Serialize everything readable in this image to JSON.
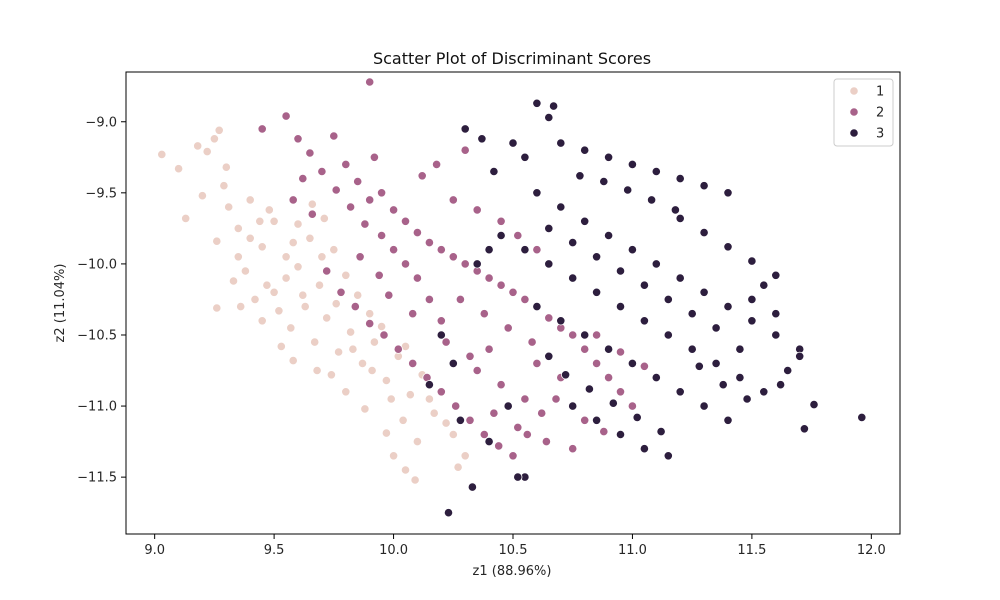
{
  "chart_data": {
    "type": "scatter",
    "title": "Scatter Plot of Discriminant Scores",
    "xlabel": "z1 (88.96%)",
    "ylabel": "z2 (11.04%)",
    "xlim": [
      8.88,
      12.12
    ],
    "ylim": [
      -11.9,
      -8.65
    ],
    "xticks": [
      9.0,
      9.5,
      10.0,
      10.5,
      11.0,
      11.5,
      12.0
    ],
    "xtick_labels": [
      "9.0",
      "9.5",
      "10.0",
      "10.5",
      "11.0",
      "11.5",
      "12.0"
    ],
    "yticks": [
      -9.0,
      -9.5,
      -10.0,
      -10.5,
      -11.0,
      -11.5
    ],
    "ytick_labels": [
      "−9.0",
      "−9.5",
      "−10.0",
      "−10.5",
      "−11.0",
      "−11.5"
    ],
    "grid": false,
    "legend_position": "top-right",
    "series": [
      {
        "name": "1",
        "color": "#ebcfc6",
        "points": [
          [
            9.03,
            -9.23
          ],
          [
            9.1,
            -9.33
          ],
          [
            9.13,
            -9.68
          ],
          [
            9.18,
            -9.17
          ],
          [
            9.22,
            -9.21
          ],
          [
            9.25,
            -9.12
          ],
          [
            9.27,
            -9.06
          ],
          [
            9.3,
            -9.32
          ],
          [
            9.2,
            -9.52
          ],
          [
            9.26,
            -9.84
          ],
          [
            9.31,
            -9.6
          ],
          [
            9.35,
            -9.75
          ],
          [
            9.4,
            -9.55
          ],
          [
            9.45,
            -9.88
          ],
          [
            9.5,
            -9.7
          ],
          [
            9.55,
            -9.95
          ],
          [
            9.6,
            -10.02
          ],
          [
            9.65,
            -9.82
          ],
          [
            9.7,
            -9.95
          ],
          [
            9.38,
            -10.05
          ],
          [
            9.42,
            -10.25
          ],
          [
            9.47,
            -10.15
          ],
          [
            9.52,
            -10.33
          ],
          [
            9.57,
            -10.45
          ],
          [
            9.62,
            -10.22
          ],
          [
            9.67,
            -10.55
          ],
          [
            9.72,
            -10.38
          ],
          [
            9.77,
            -10.62
          ],
          [
            9.82,
            -10.48
          ],
          [
            9.87,
            -10.7
          ],
          [
            9.92,
            -10.55
          ],
          [
            9.97,
            -10.82
          ],
          [
            10.02,
            -10.65
          ],
          [
            10.07,
            -10.92
          ],
          [
            10.12,
            -10.78
          ],
          [
            10.17,
            -11.05
          ],
          [
            10.22,
            -11.12
          ],
          [
            10.0,
            -11.35
          ],
          [
            10.05,
            -11.45
          ],
          [
            10.09,
            -11.52
          ],
          [
            9.97,
            -11.19
          ],
          [
            9.88,
            -11.02
          ],
          [
            9.8,
            -10.9
          ],
          [
            9.74,
            -10.78
          ],
          [
            9.68,
            -10.75
          ],
          [
            9.58,
            -10.68
          ],
          [
            9.53,
            -10.58
          ],
          [
            9.45,
            -10.4
          ],
          [
            9.36,
            -10.3
          ],
          [
            9.26,
            -10.31
          ],
          [
            9.6,
            -9.72
          ],
          [
            9.66,
            -9.58
          ],
          [
            9.71,
            -9.68
          ],
          [
            9.75,
            -9.9
          ],
          [
            9.8,
            -10.08
          ],
          [
            9.85,
            -10.22
          ],
          [
            9.9,
            -10.35
          ],
          [
            9.95,
            -10.44
          ],
          [
            10.05,
            -10.58
          ],
          [
            10.15,
            -10.95
          ],
          [
            10.25,
            -11.2
          ],
          [
            10.3,
            -11.35
          ],
          [
            10.27,
            -11.43
          ],
          [
            9.48,
            -9.62
          ],
          [
            9.44,
            -9.7
          ],
          [
            9.35,
            -9.95
          ],
          [
            9.33,
            -10.12
          ],
          [
            9.55,
            -10.1
          ],
          [
            9.63,
            -10.3
          ],
          [
            9.69,
            -10.15
          ],
          [
            9.76,
            -10.28
          ],
          [
            9.83,
            -10.6
          ],
          [
            9.91,
            -10.75
          ],
          [
            9.99,
            -10.95
          ],
          [
            10.04,
            -11.1
          ],
          [
            10.1,
            -11.25
          ],
          [
            9.58,
            -9.85
          ],
          [
            9.5,
            -10.2
          ],
          [
            9.4,
            -9.82
          ],
          [
            9.29,
            -9.45
          ]
        ]
      },
      {
        "name": "2",
        "color": "#a8628a",
        "points": [
          [
            9.9,
            -8.72
          ],
          [
            9.55,
            -8.96
          ],
          [
            9.45,
            -9.05
          ],
          [
            9.6,
            -9.12
          ],
          [
            9.65,
            -9.22
          ],
          [
            9.7,
            -9.35
          ],
          [
            9.75,
            -9.1
          ],
          [
            9.8,
            -9.3
          ],
          [
            9.85,
            -9.42
          ],
          [
            9.9,
            -9.55
          ],
          [
            9.95,
            -9.5
          ],
          [
            10.0,
            -9.62
          ],
          [
            10.05,
            -9.7
          ],
          [
            10.1,
            -9.78
          ],
          [
            10.15,
            -9.85
          ],
          [
            10.2,
            -9.9
          ],
          [
            10.25,
            -9.95
          ],
          [
            10.3,
            -10.0
          ],
          [
            10.35,
            -10.05
          ],
          [
            10.4,
            -10.1
          ],
          [
            10.45,
            -10.15
          ],
          [
            10.5,
            -10.2
          ],
          [
            10.55,
            -10.25
          ],
          [
            10.6,
            -10.3
          ],
          [
            10.65,
            -10.38
          ],
          [
            10.7,
            -10.45
          ],
          [
            10.75,
            -10.5
          ],
          [
            10.8,
            -10.6
          ],
          [
            10.85,
            -10.7
          ],
          [
            10.9,
            -10.8
          ],
          [
            10.95,
            -10.9
          ],
          [
            11.0,
            -11.0
          ],
          [
            9.72,
            -10.05
          ],
          [
            9.78,
            -10.2
          ],
          [
            9.84,
            -10.3
          ],
          [
            9.9,
            -10.42
          ],
          [
            9.96,
            -10.5
          ],
          [
            10.02,
            -10.6
          ],
          [
            10.08,
            -10.7
          ],
          [
            10.14,
            -10.8
          ],
          [
            10.2,
            -10.9
          ],
          [
            10.26,
            -11.0
          ],
          [
            10.32,
            -11.1
          ],
          [
            10.38,
            -11.2
          ],
          [
            10.44,
            -11.28
          ],
          [
            10.5,
            -11.35
          ],
          [
            10.56,
            -11.2
          ],
          [
            10.62,
            -11.05
          ],
          [
            10.68,
            -10.95
          ],
          [
            10.4,
            -10.6
          ],
          [
            10.35,
            -10.75
          ],
          [
            10.45,
            -10.85
          ],
          [
            10.55,
            -10.95
          ],
          [
            10.6,
            -10.7
          ],
          [
            10.7,
            -10.8
          ],
          [
            10.8,
            -11.1
          ],
          [
            10.2,
            -10.4
          ],
          [
            10.15,
            -10.25
          ],
          [
            10.1,
            -10.1
          ],
          [
            10.05,
            -10.0
          ],
          [
            10.0,
            -9.9
          ],
          [
            9.95,
            -9.8
          ],
          [
            9.88,
            -9.72
          ],
          [
            9.82,
            -9.6
          ],
          [
            9.76,
            -9.48
          ],
          [
            10.25,
            -9.55
          ],
          [
            10.35,
            -9.62
          ],
          [
            10.45,
            -9.7
          ],
          [
            10.52,
            -9.8
          ],
          [
            10.6,
            -9.9
          ],
          [
            10.12,
            -9.38
          ],
          [
            10.18,
            -9.3
          ],
          [
            9.92,
            -9.25
          ],
          [
            10.3,
            -9.2
          ],
          [
            9.62,
            -9.4
          ],
          [
            9.58,
            -9.55
          ],
          [
            9.66,
            -9.65
          ],
          [
            10.28,
            -10.25
          ],
          [
            10.38,
            -10.35
          ],
          [
            10.48,
            -10.45
          ],
          [
            10.58,
            -10.55
          ],
          [
            10.42,
            -11.05
          ],
          [
            10.52,
            -11.15
          ],
          [
            10.64,
            -11.25
          ],
          [
            10.88,
            -11.18
          ],
          [
            10.75,
            -11.3
          ],
          [
            10.85,
            -10.5
          ],
          [
            10.95,
            -10.62
          ],
          [
            11.05,
            -10.72
          ],
          [
            10.22,
            -10.55
          ],
          [
            10.32,
            -10.65
          ],
          [
            9.98,
            -10.22
          ],
          [
            10.08,
            -10.35
          ],
          [
            9.86,
            -9.95
          ],
          [
            9.94,
            -10.08
          ]
        ]
      },
      {
        "name": "3",
        "color": "#2d1e3e",
        "points": [
          [
            10.6,
            -8.87
          ],
          [
            10.65,
            -8.97
          ],
          [
            10.67,
            -8.89
          ],
          [
            10.5,
            -9.15
          ],
          [
            10.55,
            -9.25
          ],
          [
            10.7,
            -9.15
          ],
          [
            10.8,
            -9.2
          ],
          [
            10.9,
            -9.25
          ],
          [
            11.0,
            -9.3
          ],
          [
            11.1,
            -9.35
          ],
          [
            11.2,
            -9.4
          ],
          [
            11.3,
            -9.45
          ],
          [
            11.4,
            -9.5
          ],
          [
            10.6,
            -9.5
          ],
          [
            10.7,
            -9.6
          ],
          [
            10.8,
            -9.7
          ],
          [
            10.9,
            -9.8
          ],
          [
            11.0,
            -9.9
          ],
          [
            11.1,
            -10.0
          ],
          [
            11.2,
            -10.1
          ],
          [
            11.3,
            -10.2
          ],
          [
            11.4,
            -10.3
          ],
          [
            11.5,
            -10.4
          ],
          [
            11.6,
            -10.5
          ],
          [
            11.7,
            -10.6
          ],
          [
            10.55,
            -9.9
          ],
          [
            10.65,
            -10.0
          ],
          [
            10.75,
            -10.1
          ],
          [
            10.85,
            -10.2
          ],
          [
            10.95,
            -10.3
          ],
          [
            11.05,
            -10.4
          ],
          [
            11.15,
            -10.5
          ],
          [
            11.25,
            -10.6
          ],
          [
            11.35,
            -10.7
          ],
          [
            11.45,
            -10.8
          ],
          [
            11.55,
            -10.9
          ],
          [
            10.6,
            -10.3
          ],
          [
            10.7,
            -10.4
          ],
          [
            10.8,
            -10.5
          ],
          [
            10.9,
            -10.6
          ],
          [
            11.0,
            -10.7
          ],
          [
            11.1,
            -10.8
          ],
          [
            11.2,
            -10.9
          ],
          [
            11.3,
            -11.0
          ],
          [
            11.4,
            -11.1
          ],
          [
            10.75,
            -11.0
          ],
          [
            10.85,
            -11.1
          ],
          [
            10.95,
            -11.2
          ],
          [
            11.05,
            -11.3
          ],
          [
            11.15,
            -11.35
          ],
          [
            11.76,
            -10.99
          ],
          [
            11.72,
            -11.16
          ],
          [
            11.96,
            -11.08
          ],
          [
            11.7,
            -10.65
          ],
          [
            11.65,
            -10.75
          ],
          [
            10.33,
            -11.57
          ],
          [
            10.23,
            -11.75
          ],
          [
            10.55,
            -11.5
          ],
          [
            10.52,
            -11.5
          ],
          [
            10.35,
            -10.0
          ],
          [
            10.4,
            -9.9
          ],
          [
            10.45,
            -9.8
          ],
          [
            10.3,
            -9.05
          ],
          [
            10.37,
            -9.12
          ],
          [
            10.42,
            -9.35
          ],
          [
            11.2,
            -9.68
          ],
          [
            11.3,
            -9.78
          ],
          [
            11.4,
            -9.88
          ],
          [
            11.5,
            -9.98
          ],
          [
            11.6,
            -10.08
          ],
          [
            11.5,
            -10.25
          ],
          [
            11.6,
            -10.35
          ],
          [
            11.55,
            -10.15
          ],
          [
            11.45,
            -10.6
          ],
          [
            11.35,
            -10.45
          ],
          [
            11.25,
            -10.35
          ],
          [
            11.15,
            -10.25
          ],
          [
            11.05,
            -10.15
          ],
          [
            10.95,
            -10.05
          ],
          [
            10.85,
            -9.95
          ],
          [
            10.75,
            -9.85
          ],
          [
            10.65,
            -9.75
          ],
          [
            11.08,
            -9.55
          ],
          [
            11.18,
            -9.62
          ],
          [
            10.98,
            -9.48
          ],
          [
            10.88,
            -9.42
          ],
          [
            10.78,
            -9.38
          ],
          [
            11.28,
            -10.72
          ],
          [
            11.38,
            -10.85
          ],
          [
            11.48,
            -10.95
          ],
          [
            11.62,
            -10.85
          ],
          [
            10.65,
            -10.65
          ],
          [
            10.72,
            -10.78
          ],
          [
            10.82,
            -10.88
          ],
          [
            10.92,
            -10.98
          ],
          [
            11.02,
            -11.08
          ],
          [
            11.12,
            -11.18
          ],
          [
            10.2,
            -10.5
          ],
          [
            10.25,
            -10.7
          ],
          [
            10.15,
            -10.85
          ],
          [
            10.28,
            -11.1
          ],
          [
            10.4,
            -11.25
          ],
          [
            10.48,
            -11.0
          ]
        ]
      }
    ]
  }
}
